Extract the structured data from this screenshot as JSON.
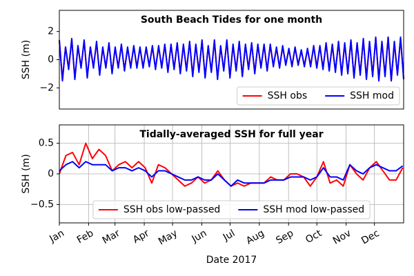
{
  "chart_data": [
    {
      "type": "line",
      "title": "South Beach Tides for one month",
      "ylabel": "SSH (m)",
      "ylim": [
        -3.5,
        3.5
      ],
      "yticks": [
        {
          "value": -2,
          "label": "−2"
        },
        0,
        2
      ],
      "grid": false,
      "legend": "lower right",
      "series": [
        {
          "name": "SSH obs",
          "color": "#ff0000",
          "values": [
            1.3,
            -1.4,
            0.9,
            -0.6,
            1.4,
            -1.3,
            0.9,
            -0.5,
            1.3,
            -1.2,
            0.9,
            -0.5,
            1.2,
            -1.0,
            0.8,
            -0.5,
            1.1,
            -0.9,
            0.8,
            -0.5,
            1.0,
            -0.7,
            0.8,
            -0.5,
            0.9,
            -0.5,
            0.8,
            -0.5,
            0.8,
            -0.4,
            0.9,
            -0.6,
            0.9,
            -0.5,
            1.0,
            -0.8,
            1.0,
            -0.6,
            1.1,
            -0.9,
            1.0,
            -0.7,
            1.2,
            -1.1,
            1.0,
            -0.8,
            1.3,
            -1.2,
            0.9,
            -0.8,
            1.3,
            -1.3,
            0.9,
            -0.7,
            1.3,
            -1.2,
            1.0,
            -0.7,
            1.2,
            -1.1,
            1.0,
            -0.6,
            1.1,
            -0.9,
            1.0,
            -0.5,
            1.0,
            -0.7,
            1.0,
            -0.4,
            0.8,
            -0.5,
            0.9,
            -0.3,
            0.7,
            -0.4,
            0.8,
            -0.3,
            0.6,
            -0.4,
            0.7,
            -0.4,
            0.9,
            -0.5,
            0.9,
            -0.6,
            1.1,
            -0.7,
            1.0,
            -0.8,
            1.2,
            -1.0,
            1.1,
            -0.9,
            1.3,
            -1.2,
            1.1,
            -1.0,
            1.4,
            -1.3,
            1.2,
            -1.1,
            1.5,
            -1.4,
            1.2,
            -1.1,
            1.6,
            -1.5,
            1.2,
            -1.0,
            1.5,
            -1.3
          ]
        },
        {
          "name": "SSH mod",
          "color": "#0000ff",
          "values": [
            1.4,
            -1.5,
            0.9,
            -0.7,
            1.5,
            -1.4,
            1.0,
            -0.6,
            1.4,
            -1.3,
            0.9,
            -0.6,
            1.3,
            -1.1,
            0.9,
            -0.6,
            1.2,
            -1.0,
            0.9,
            -0.6,
            1.1,
            -0.8,
            0.9,
            -0.6,
            1.0,
            -0.6,
            0.9,
            -0.6,
            0.9,
            -0.5,
            1.0,
            -0.7,
            1.0,
            -0.6,
            1.1,
            -0.9,
            1.1,
            -0.7,
            1.2,
            -1.0,
            1.1,
            -0.8,
            1.3,
            -1.2,
            1.1,
            -0.9,
            1.4,
            -1.3,
            1.0,
            -0.9,
            1.4,
            -1.4,
            1.0,
            -0.8,
            1.4,
            -1.3,
            1.1,
            -0.8,
            1.3,
            -1.2,
            1.1,
            -0.7,
            1.2,
            -1.0,
            1.1,
            -0.6,
            1.1,
            -0.8,
            1.1,
            -0.5,
            0.9,
            -0.6,
            1.0,
            -0.4,
            0.8,
            -0.5,
            0.9,
            -0.4,
            0.7,
            -0.5,
            0.8,
            -0.5,
            1.0,
            -0.6,
            1.0,
            -0.7,
            1.2,
            -0.8,
            1.1,
            -0.9,
            1.3,
            -1.1,
            1.2,
            -1.0,
            1.4,
            -1.3,
            1.2,
            -1.1,
            1.5,
            -1.4,
            1.3,
            -1.2,
            1.6,
            -1.5,
            1.3,
            -1.2,
            1.6,
            -1.5,
            1.3,
            -1.1,
            1.6,
            -1.4
          ]
        }
      ]
    },
    {
      "type": "line",
      "title": "Tidally-averaged SSH for full year",
      "ylabel": "SSH (m)",
      "xlabel": "Date 2017",
      "ylim": [
        -0.8,
        0.8
      ],
      "yticks": [
        {
          "value": -0.5,
          "label": "−0.5"
        },
        0.0,
        0.5
      ],
      "grid": true,
      "legend": "lower center",
      "xlim": [
        0,
        365
      ],
      "xticks": [
        {
          "value": 0,
          "label": "Jan"
        },
        {
          "value": 31,
          "label": "Feb"
        },
        {
          "value": 59,
          "label": "Mar"
        },
        {
          "value": 90,
          "label": "Apr"
        },
        {
          "value": 120,
          "label": "May"
        },
        {
          "value": 151,
          "label": "Jun"
        },
        {
          "value": 181,
          "label": "Jul"
        },
        {
          "value": 212,
          "label": "Aug"
        },
        {
          "value": 243,
          "label": "Sep"
        },
        {
          "value": 273,
          "label": "Oct"
        },
        {
          "value": 304,
          "label": "Nov"
        },
        {
          "value": 334,
          "label": "Dec"
        }
      ],
      "x": [
        0,
        7,
        14,
        21,
        28,
        35,
        42,
        49,
        56,
        63,
        70,
        77,
        84,
        91,
        98,
        105,
        112,
        119,
        126,
        133,
        140,
        147,
        154,
        161,
        168,
        175,
        182,
        189,
        196,
        203,
        210,
        217,
        224,
        231,
        238,
        245,
        252,
        259,
        266,
        273,
        280,
        287,
        294,
        301,
        308,
        315,
        322,
        329,
        336,
        343,
        350,
        357,
        364
      ],
      "series": [
        {
          "name": "SSH obs low-passed",
          "color": "#ff0000",
          "values": [
            0.0,
            0.3,
            0.35,
            0.15,
            0.5,
            0.25,
            0.4,
            0.3,
            0.05,
            0.15,
            0.2,
            0.1,
            0.2,
            0.1,
            -0.15,
            0.15,
            0.1,
            0.0,
            -0.1,
            -0.2,
            -0.15,
            -0.05,
            -0.15,
            -0.1,
            0.05,
            -0.1,
            -0.2,
            -0.15,
            -0.2,
            -0.15,
            -0.15,
            -0.15,
            -0.05,
            -0.1,
            -0.1,
            0.0,
            0.0,
            -0.05,
            -0.2,
            -0.05,
            0.2,
            -0.15,
            -0.1,
            -0.2,
            0.15,
            0.0,
            -0.1,
            0.1,
            0.2,
            0.05,
            -0.1,
            -0.1,
            0.1
          ]
        },
        {
          "name": "SSH mod low-passed",
          "color": "#0000ff",
          "values": [
            0.05,
            0.15,
            0.2,
            0.1,
            0.2,
            0.15,
            0.15,
            0.15,
            0.05,
            0.1,
            0.1,
            0.05,
            0.1,
            0.05,
            -0.05,
            0.05,
            0.05,
            0.0,
            -0.05,
            -0.1,
            -0.1,
            -0.05,
            -0.1,
            -0.1,
            0.0,
            -0.1,
            -0.2,
            -0.1,
            -0.15,
            -0.15,
            -0.15,
            -0.15,
            -0.1,
            -0.1,
            -0.1,
            -0.05,
            -0.05,
            -0.05,
            -0.1,
            -0.05,
            0.1,
            -0.05,
            -0.05,
            -0.1,
            0.15,
            0.05,
            0.0,
            0.1,
            0.15,
            0.1,
            0.05,
            0.05,
            0.13
          ]
        }
      ]
    }
  ]
}
